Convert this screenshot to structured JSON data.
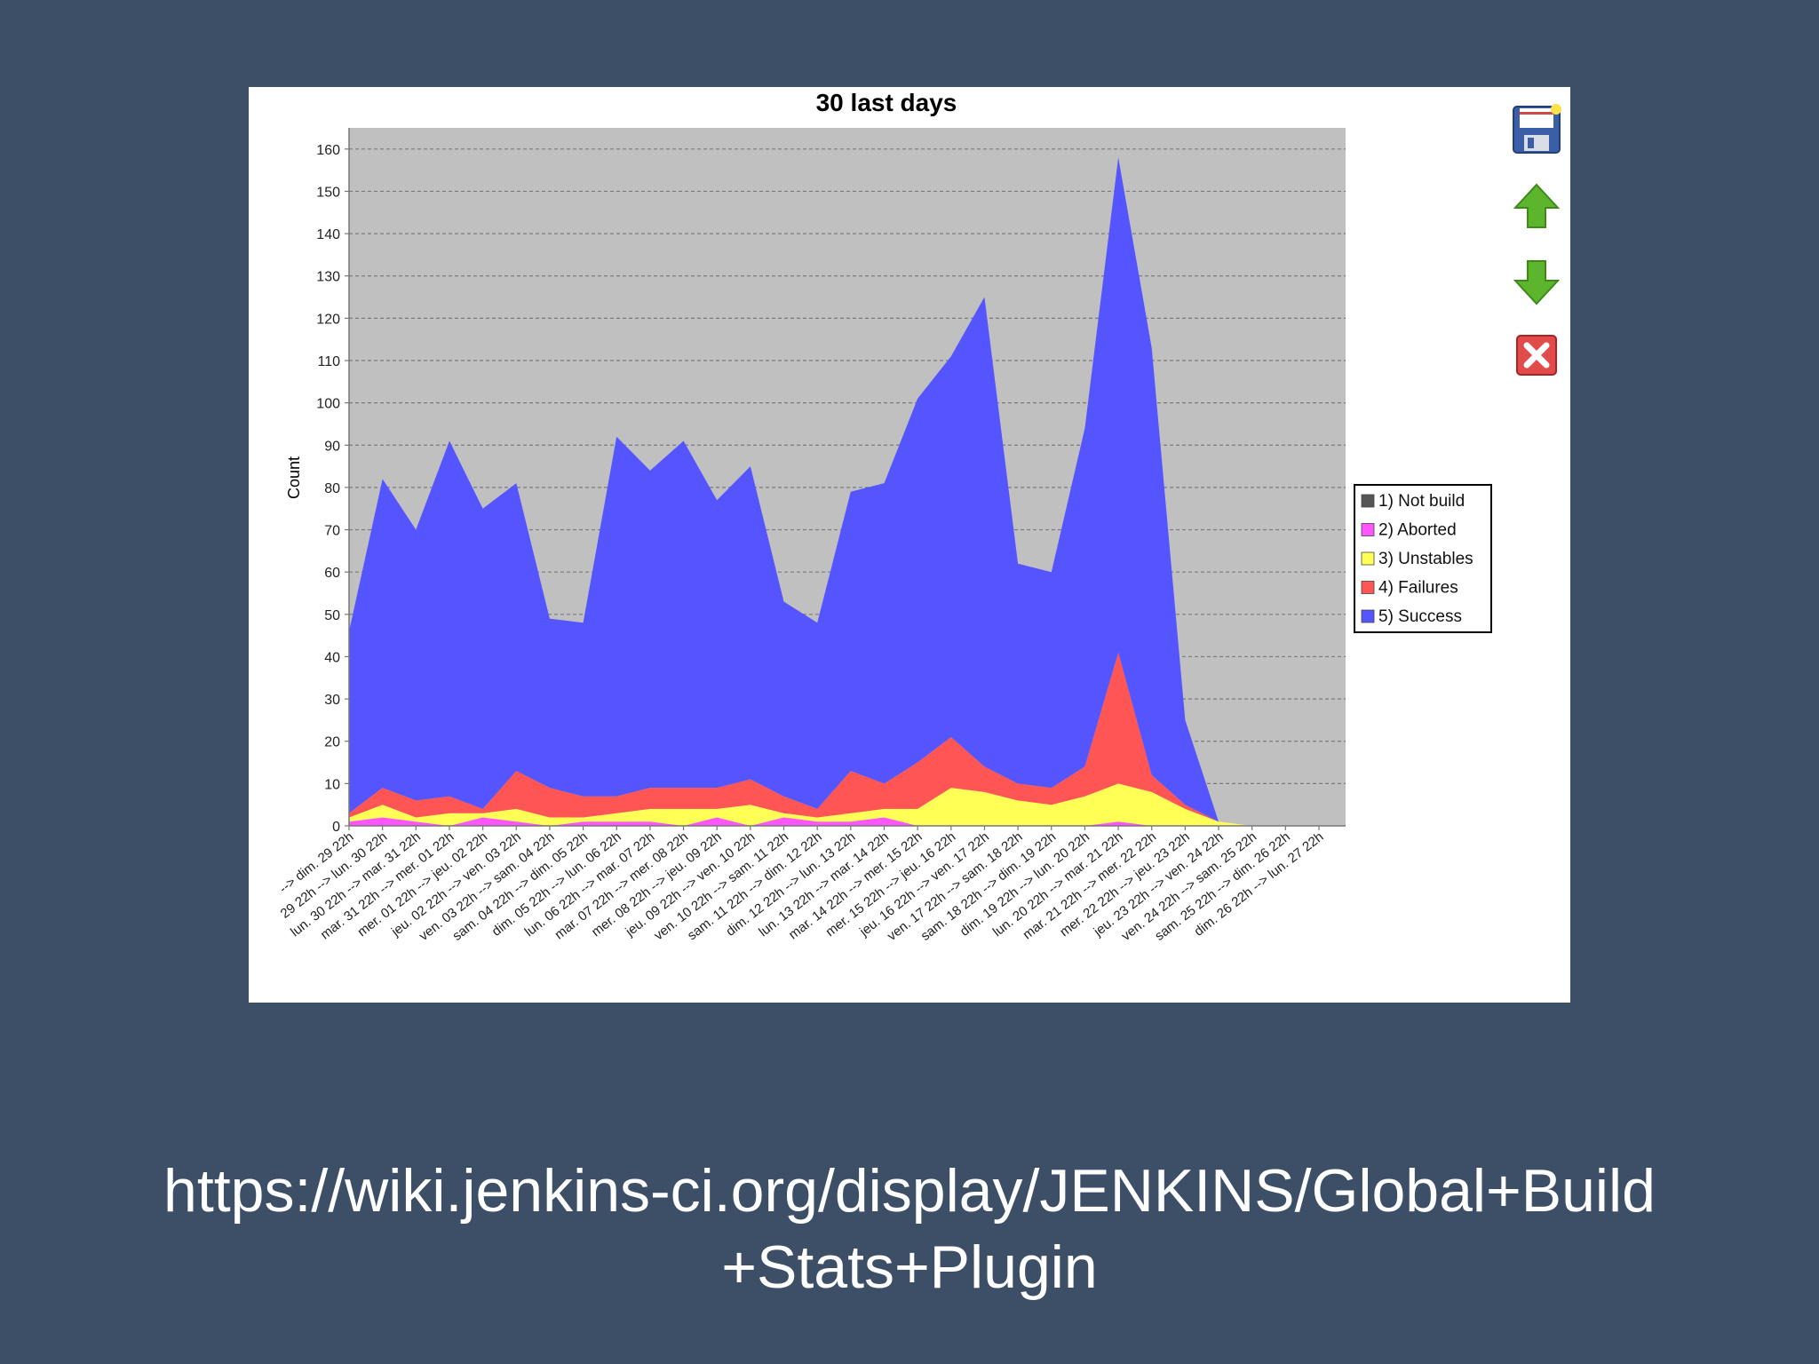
{
  "caption": {
    "line1": "https://wiki.jenkins-ci.org/display/JENKINS/Global+Build",
    "line2": "+Stats+Plugin"
  },
  "colors": {
    "page_background": "#3d4f66",
    "plot_background": "#c0c0c0",
    "not_build": "#555555",
    "aborted": "#ff55ff",
    "unstables": "#ffff55",
    "failures": "#ff5555",
    "success": "#5555ff"
  },
  "toolbar": {
    "icons": [
      "save-icon",
      "move-up-icon",
      "move-down-icon",
      "delete-icon"
    ]
  },
  "chart_data": {
    "type": "area",
    "stacked": true,
    "title": "30 last days",
    "xlabel": "",
    "ylabel": "Count",
    "ylim": [
      0,
      165
    ],
    "yticks": [
      0,
      10,
      20,
      30,
      40,
      50,
      60,
      70,
      80,
      90,
      100,
      110,
      120,
      130,
      140,
      150,
      160
    ],
    "grid": true,
    "legend_position": "right",
    "categories": [
      "--> dim. 29 22h",
      "29 22h --> lun. 30 22h",
      "lun. 30 22h --> mar. 31 22h",
      "mar. 31 22h --> mer. 01 22h",
      "mer. 01 22h --> jeu. 02 22h",
      "jeu. 02 22h --> ven. 03 22h",
      "ven. 03 22h --> sam. 04 22h",
      "sam. 04 22h --> dim. 05 22h",
      "dim. 05 22h --> lun. 06 22h",
      "lun. 06 22h --> mar. 07 22h",
      "mar. 07 22h --> mer. 08 22h",
      "mer. 08 22h --> jeu. 09 22h",
      "jeu. 09 22h --> ven. 10 22h",
      "ven. 10 22h --> sam. 11 22h",
      "sam. 11 22h --> dim. 12 22h",
      "dim. 12 22h --> lun. 13 22h",
      "lun. 13 22h --> mar. 14 22h",
      "mar. 14 22h --> mer. 15 22h",
      "mer. 15 22h --> jeu. 16 22h",
      "jeu. 16 22h --> ven. 17 22h",
      "ven. 17 22h --> sam. 18 22h",
      "sam. 18 22h --> dim. 19 22h",
      "dim. 19 22h --> lun. 20 22h",
      "lun. 20 22h --> mar. 21 22h",
      "mar. 21 22h --> mer. 22 22h",
      "mer. 22 22h --> jeu. 23 22h",
      "jeu. 23 22h --> ven. 24 22h",
      "ven. 24 22h --> sam. 25 22h",
      "sam. 25 22h --> dim. 26 22h",
      "dim. 26 22h --> lun. 27 22h"
    ],
    "series": [
      {
        "name": "1) Not build",
        "values": [
          0,
          0,
          0,
          0,
          0,
          0,
          0,
          0,
          0,
          0,
          0,
          0,
          0,
          0,
          0,
          0,
          0,
          0,
          0,
          0,
          0,
          0,
          0,
          0,
          0,
          0,
          0,
          0,
          0,
          0
        ]
      },
      {
        "name": "2) Aborted",
        "values": [
          1,
          2,
          1,
          0,
          2,
          1,
          0,
          1,
          1,
          1,
          0,
          2,
          0,
          2,
          1,
          1,
          2,
          0,
          0,
          0,
          0,
          0,
          0,
          1,
          0,
          0,
          0,
          0,
          0,
          0
        ]
      },
      {
        "name": "3) Unstables",
        "values": [
          1,
          3,
          1,
          3,
          1,
          3,
          2,
          1,
          2,
          3,
          4,
          2,
          5,
          1,
          1,
          2,
          2,
          4,
          9,
          8,
          6,
          5,
          7,
          9,
          8,
          4,
          1,
          0,
          0,
          0
        ]
      },
      {
        "name": "4) Failures",
        "values": [
          1,
          4,
          4,
          4,
          1,
          9,
          7,
          5,
          4,
          5,
          5,
          5,
          6,
          4,
          2,
          10,
          6,
          11,
          12,
          6,
          4,
          4,
          7,
          31,
          4,
          1,
          0,
          0,
          0,
          0
        ]
      },
      {
        "name": "5) Success",
        "values": [
          43,
          73,
          64,
          84,
          71,
          68,
          40,
          41,
          85,
          75,
          82,
          68,
          74,
          46,
          44,
          66,
          71,
          86,
          90,
          111,
          52,
          51,
          80,
          117,
          101,
          20,
          0,
          0,
          0,
          0
        ]
      }
    ]
  }
}
